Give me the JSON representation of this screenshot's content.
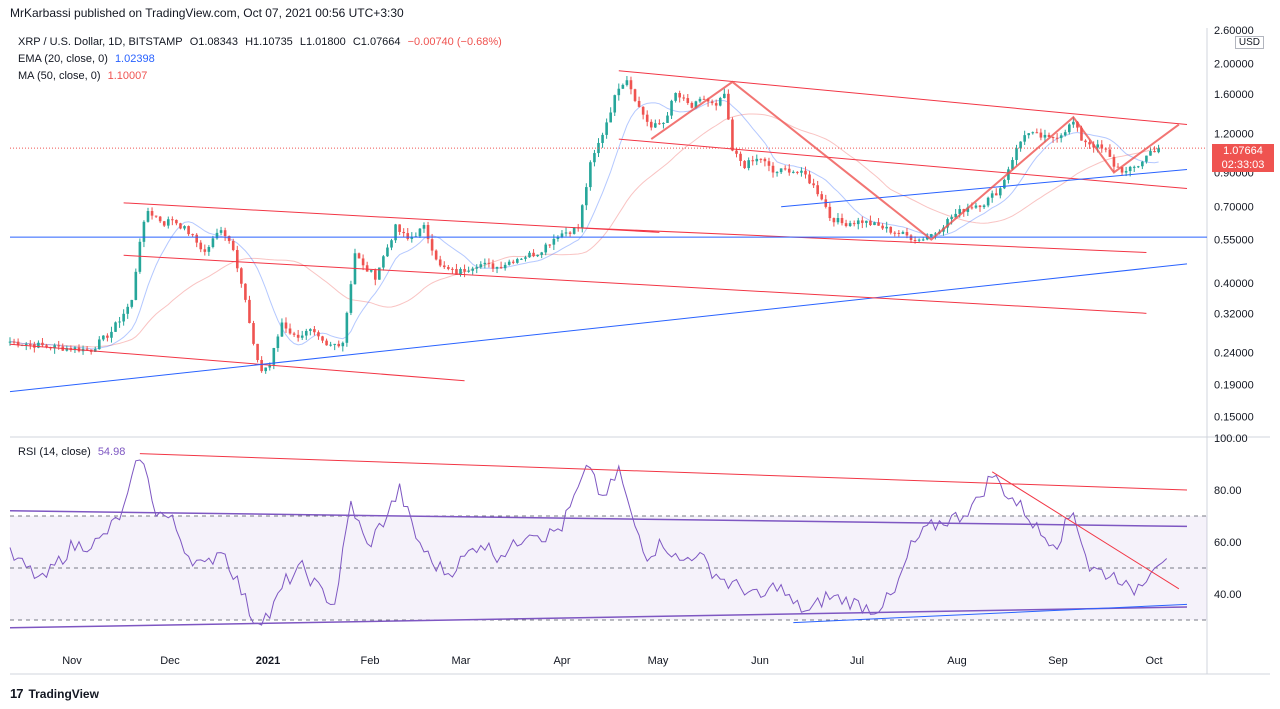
{
  "header": {
    "publisher": "MrKarbassi published on TradingView.com, Oct 07, 2021 00:56 UTC+3:30"
  },
  "legend": {
    "symbol": "XRP / U.S. Dollar, 1D, BITSTAMP",
    "o": "O1.08343",
    "h": "H1.10735",
    "l": "L1.01800",
    "c": "C1.07664",
    "change": "−0.00740 (−0.68%)",
    "ema_label": "EMA (20, close, 0)",
    "ema_value": "1.02398",
    "ma_label": "MA (50, close, 0)",
    "ma_value": "1.10007"
  },
  "price_axis": {
    "currency": "USD",
    "top_label": "2.60000",
    "labels": [
      "2.00000",
      "1.60000",
      "1.20000",
      "0.90000",
      "0.70000",
      "0.55000",
      "0.40000",
      "0.32000",
      "0.24000",
      "0.19000",
      "0.15000"
    ],
    "last_price": "1.07664",
    "countdown": "02:33:03"
  },
  "rsi": {
    "label": "RSI (14, close)",
    "value": "54.98",
    "labels": [
      "100.00",
      "80.00",
      "60.00",
      "40.00"
    ]
  },
  "time_axis": [
    "Nov",
    "Dec",
    "2021",
    "Feb",
    "Mar",
    "Apr",
    "May",
    "Jun",
    "Jul",
    "Aug",
    "Sep",
    "Oct"
  ],
  "footer": {
    "brand": "TradingView"
  },
  "colors": {
    "up": "#26a69a",
    "down": "#ef5350",
    "trend_red": "#f23645",
    "trend_blue": "#2962ff",
    "rsi": "#7e57c2"
  },
  "chart_data": {
    "type": "candlestick",
    "title": "XRP / U.S. Dollar, 1D, BITSTAMP",
    "scale": "log",
    "ylim": [
      0.13,
      2.6
    ],
    "months": [
      "Nov",
      "Dec",
      "2021",
      "Feb",
      "Mar",
      "Apr",
      "May",
      "Jun",
      "Jul",
      "Aug",
      "Sep",
      "Oct"
    ],
    "close_path": [
      [
        0,
        0.26
      ],
      [
        10,
        0.25
      ],
      [
        20,
        0.245
      ],
      [
        25,
        0.28
      ],
      [
        30,
        0.35
      ],
      [
        32,
        0.55
      ],
      [
        34,
        0.68
      ],
      [
        38,
        0.62
      ],
      [
        40,
        0.64
      ],
      [
        44,
        0.58
      ],
      [
        48,
        0.5
      ],
      [
        52,
        0.6
      ],
      [
        55,
        0.52
      ],
      [
        58,
        0.35
      ],
      [
        60,
        0.25
      ],
      [
        62,
        0.21
      ],
      [
        64,
        0.22
      ],
      [
        67,
        0.3
      ],
      [
        70,
        0.27
      ],
      [
        74,
        0.28
      ],
      [
        78,
        0.25
      ],
      [
        82,
        0.26
      ],
      [
        85,
        0.5
      ],
      [
        87,
        0.45
      ],
      [
        90,
        0.42
      ],
      [
        95,
        0.6
      ],
      [
        98,
        0.55
      ],
      [
        102,
        0.6
      ],
      [
        106,
        0.45
      ],
      [
        110,
        0.43
      ],
      [
        115,
        0.46
      ],
      [
        120,
        0.45
      ],
      [
        125,
        0.48
      ],
      [
        130,
        0.5
      ],
      [
        135,
        0.57
      ],
      [
        140,
        0.6
      ],
      [
        143,
        0.95
      ],
      [
        146,
        1.2
      ],
      [
        150,
        1.7
      ],
      [
        152,
        1.8
      ],
      [
        155,
        1.45
      ],
      [
        158,
        1.25
      ],
      [
        161,
        1.3
      ],
      [
        164,
        1.6
      ],
      [
        168,
        1.45
      ],
      [
        171,
        1.55
      ],
      [
        174,
        1.45
      ],
      [
        176,
        1.6
      ],
      [
        178,
        1.05
      ],
      [
        181,
        0.95
      ],
      [
        185,
        1.0
      ],
      [
        188,
        0.9
      ],
      [
        192,
        0.92
      ],
      [
        196,
        0.88
      ],
      [
        200,
        0.75
      ],
      [
        202,
        0.65
      ],
      [
        205,
        0.62
      ],
      [
        210,
        0.63
      ],
      [
        215,
        0.6
      ],
      [
        220,
        0.57
      ],
      [
        224,
        0.55
      ],
      [
        228,
        0.58
      ],
      [
        232,
        0.65
      ],
      [
        236,
        0.7
      ],
      [
        240,
        0.72
      ],
      [
        244,
        0.8
      ],
      [
        247,
        1.0
      ],
      [
        250,
        1.2
      ],
      [
        253,
        1.18
      ],
      [
        256,
        1.15
      ],
      [
        259,
        1.2
      ],
      [
        262,
        1.3
      ],
      [
        264,
        1.15
      ],
      [
        267,
        1.1
      ],
      [
        270,
        1.05
      ],
      [
        272,
        0.95
      ],
      [
        275,
        0.9
      ],
      [
        278,
        0.95
      ],
      [
        281,
        1.05
      ],
      [
        283,
        1.08
      ]
    ],
    "ema_20": "smoothed close",
    "ma_50": "smoothed close",
    "rsi_path": [
      [
        0,
        55
      ],
      [
        8,
        45
      ],
      [
        15,
        58
      ],
      [
        22,
        60
      ],
      [
        28,
        72
      ],
      [
        32,
        94
      ],
      [
        36,
        72
      ],
      [
        40,
        68
      ],
      [
        44,
        55
      ],
      [
        48,
        50
      ],
      [
        52,
        58
      ],
      [
        56,
        45
      ],
      [
        60,
        30
      ],
      [
        64,
        32
      ],
      [
        68,
        45
      ],
      [
        72,
        50
      ],
      [
        76,
        42
      ],
      [
        80,
        36
      ],
      [
        84,
        75
      ],
      [
        88,
        58
      ],
      [
        92,
        68
      ],
      [
        96,
        80
      ],
      [
        100,
        62
      ],
      [
        104,
        52
      ],
      [
        108,
        48
      ],
      [
        112,
        54
      ],
      [
        116,
        60
      ],
      [
        120,
        55
      ],
      [
        124,
        58
      ],
      [
        128,
        65
      ],
      [
        132,
        62
      ],
      [
        136,
        66
      ],
      [
        140,
        80
      ],
      [
        143,
        90
      ],
      [
        146,
        75
      ],
      [
        150,
        88
      ],
      [
        153,
        70
      ],
      [
        157,
        55
      ],
      [
        161,
        60
      ],
      [
        165,
        52
      ],
      [
        169,
        56
      ],
      [
        173,
        49
      ],
      [
        177,
        44
      ],
      [
        181,
        42
      ],
      [
        185,
        38
      ],
      [
        189,
        44
      ],
      [
        193,
        36
      ],
      [
        197,
        33
      ],
      [
        201,
        39
      ],
      [
        205,
        38
      ],
      [
        209,
        36
      ],
      [
        213,
        34
      ],
      [
        218,
        40
      ],
      [
        222,
        58
      ],
      [
        226,
        65
      ],
      [
        230,
        68
      ],
      [
        234,
        70
      ],
      [
        238,
        75
      ],
      [
        242,
        86
      ],
      [
        246,
        78
      ],
      [
        250,
        72
      ],
      [
        254,
        63
      ],
      [
        258,
        60
      ],
      [
        262,
        72
      ],
      [
        266,
        50
      ],
      [
        270,
        48
      ],
      [
        274,
        46
      ],
      [
        276,
        40
      ],
      [
        279,
        45
      ],
      [
        282,
        52
      ],
      [
        285,
        55
      ]
    ],
    "rsi_levels": {
      "upper": 70,
      "middle": 50,
      "lower": 30
    },
    "rsi_ylim": [
      20,
      100
    ]
  }
}
